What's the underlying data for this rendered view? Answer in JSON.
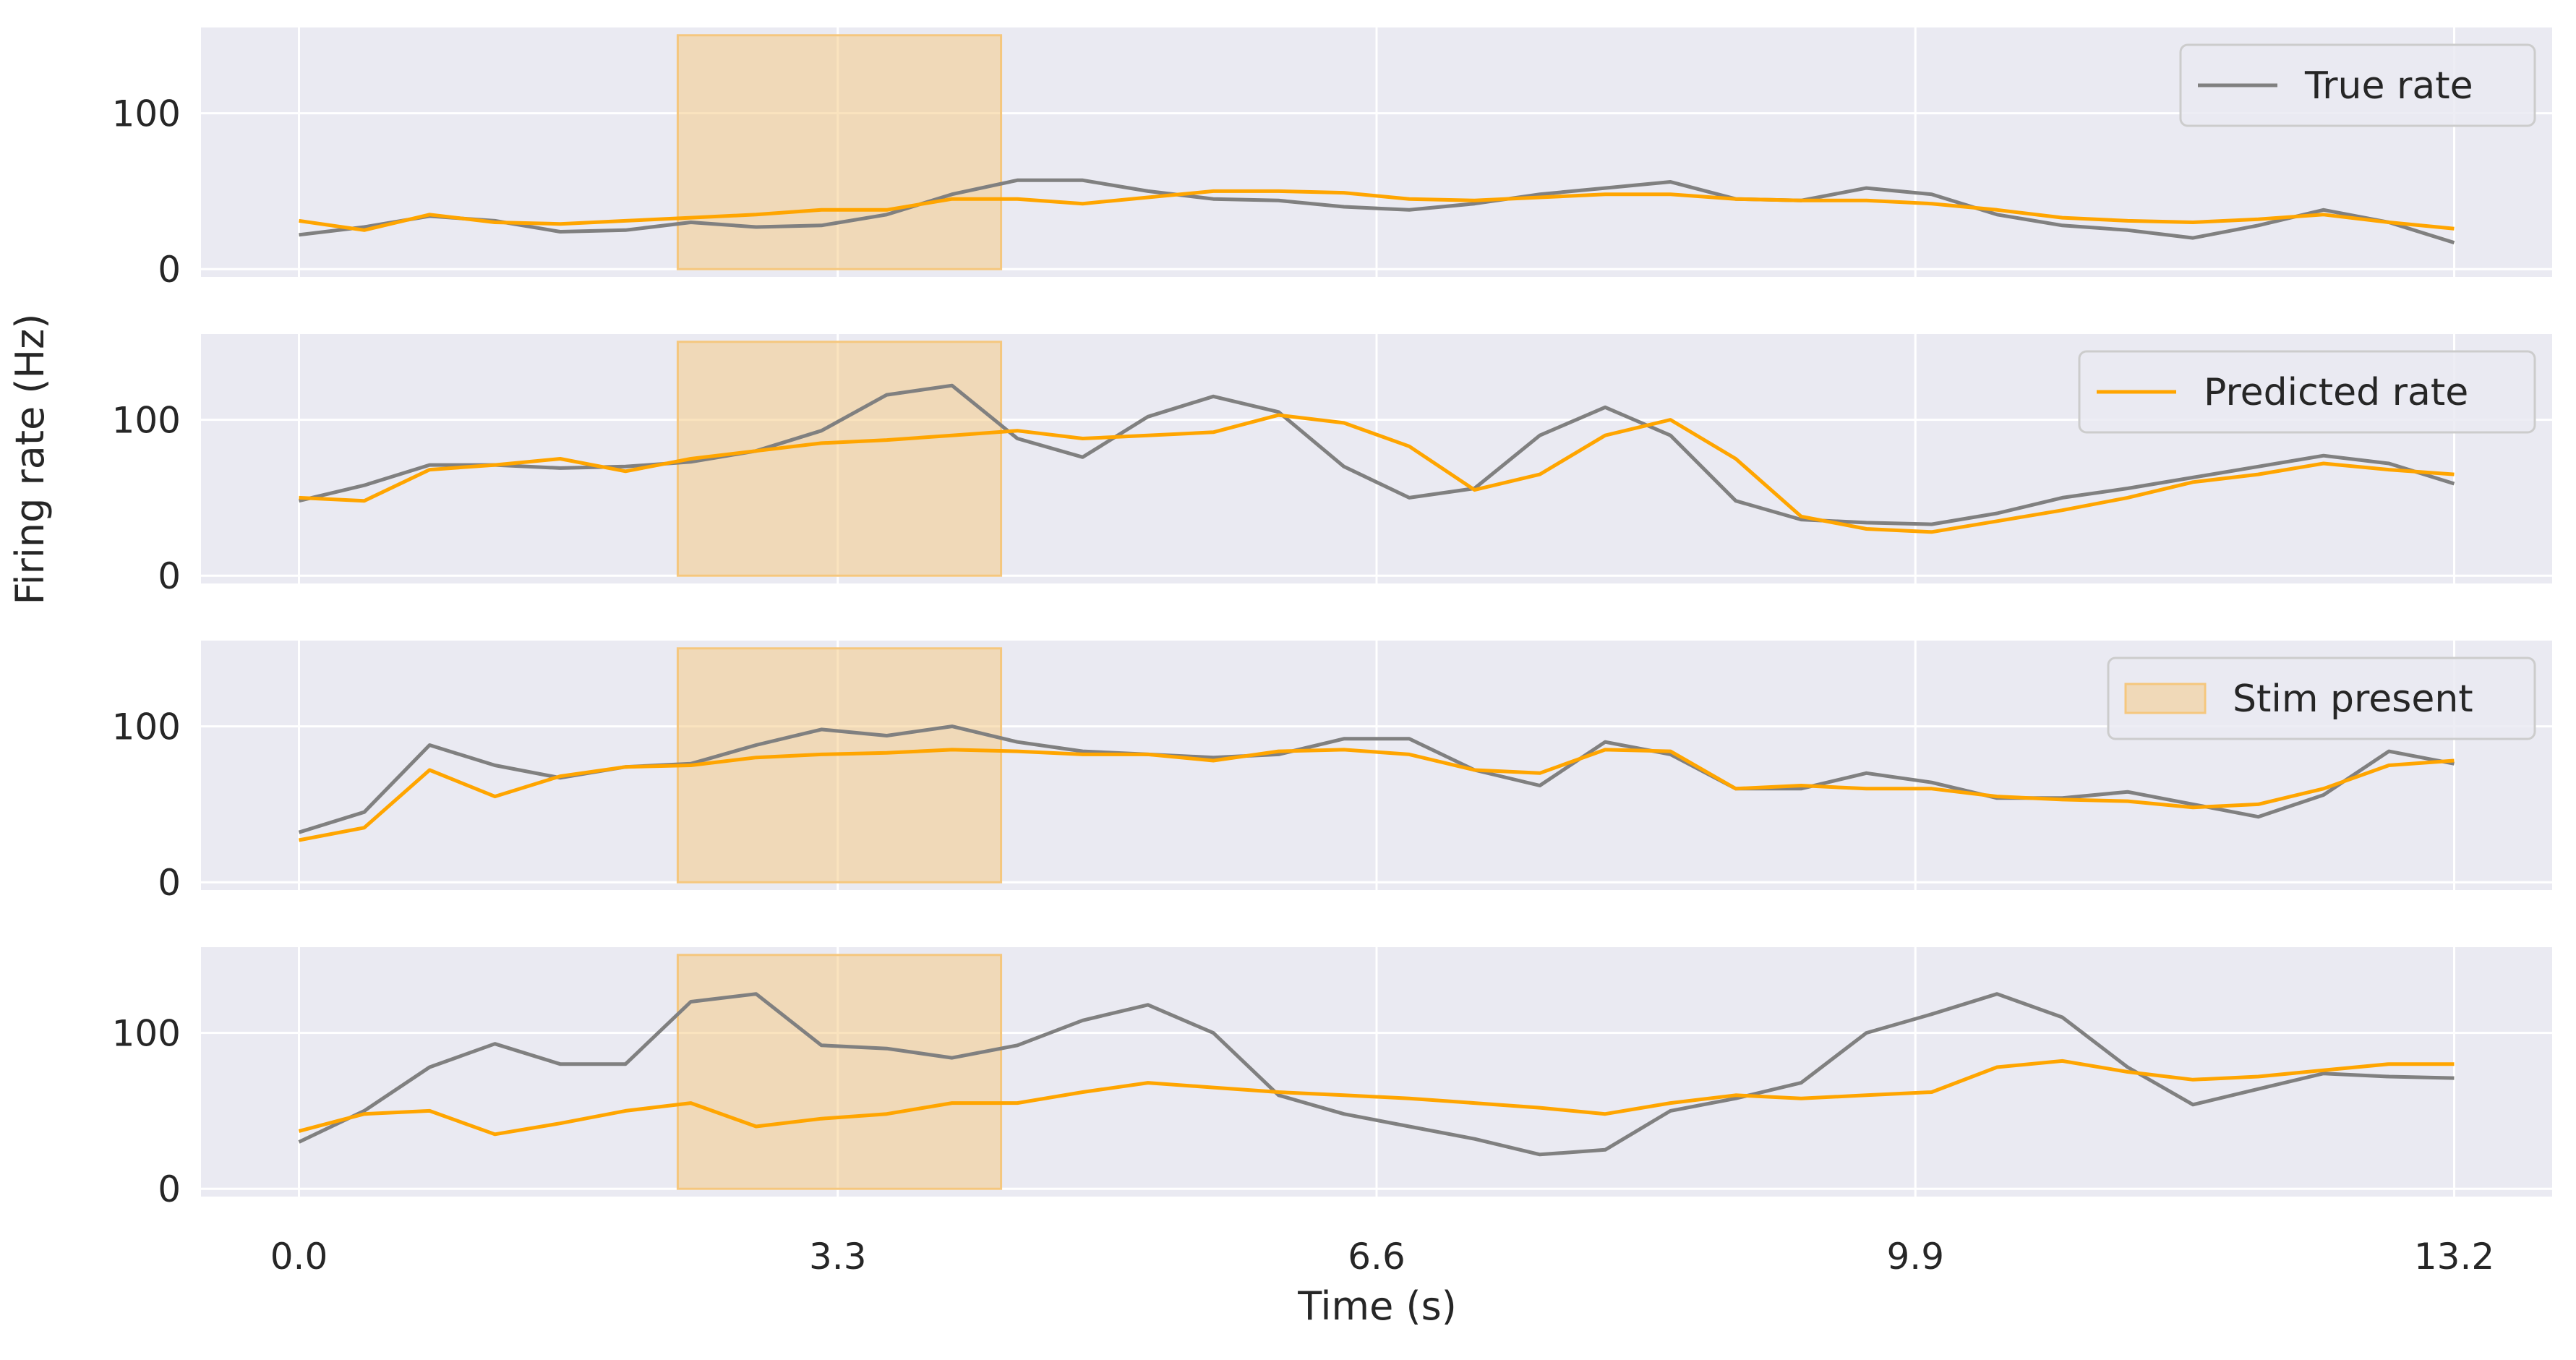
{
  "chart_data": {
    "type": "line",
    "xlabel": "Time (s)",
    "ylabel": "Firing rate (Hz)",
    "xlim": [
      -0.6,
      13.8
    ],
    "ylim": [
      -5,
      155
    ],
    "x_ticks": [
      "0.0",
      "3.3",
      "6.6",
      "9.9",
      "13.2"
    ],
    "x_tick_values": [
      0.0,
      3.3,
      6.6,
      9.9,
      13.2
    ],
    "y_ticks": [
      "0",
      "100"
    ],
    "y_tick_values": [
      0,
      100
    ],
    "grid": true,
    "stim_interval": [
      2.32,
      4.3
    ],
    "colors": {
      "true_rate": "#808080",
      "predicted_rate": "#FFA500",
      "stim_fill": "#F5C77E",
      "panel_bg": "#EAEAF2",
      "grid": "#FFFFFF"
    },
    "legend": [
      {
        "panel": 0,
        "label": "True rate",
        "kind": "line",
        "color": "#808080",
        "placement": "upper right"
      },
      {
        "panel": 1,
        "label": "Predicted rate",
        "kind": "line",
        "color": "#FFA500",
        "placement": "upper right"
      },
      {
        "panel": 2,
        "label": "Stim present",
        "kind": "patch",
        "color": "#F5C77E",
        "placement": "upper right"
      }
    ],
    "x": [
      0.0,
      0.4,
      0.8,
      1.2,
      1.6,
      2.0,
      2.4,
      2.8,
      3.2,
      3.6,
      4.0,
      4.4,
      4.8,
      5.2,
      5.6,
      6.0,
      6.4,
      6.8,
      7.2,
      7.6,
      8.0,
      8.4,
      8.8,
      9.2,
      9.6,
      10.0,
      10.4,
      10.8,
      11.2,
      11.6,
      12.0,
      12.4,
      12.8,
      13.2
    ],
    "panels": [
      {
        "true_rate": [
          22,
          27,
          34,
          31,
          24,
          25,
          30,
          27,
          28,
          35,
          48,
          57,
          57,
          50,
          45,
          44,
          40,
          38,
          42,
          48,
          52,
          56,
          45,
          44,
          52,
          48,
          35,
          28,
          25,
          20,
          28,
          38,
          30,
          17
        ],
        "predicted_rate": [
          31,
          25,
          35,
          30,
          29,
          31,
          33,
          35,
          38,
          38,
          45,
          45,
          42,
          46,
          50,
          50,
          49,
          45,
          44,
          46,
          48,
          48,
          45,
          44,
          44,
          42,
          38,
          33,
          31,
          30,
          32,
          35,
          30,
          26
        ]
      },
      {
        "true_rate": [
          48,
          58,
          71,
          71,
          69,
          70,
          73,
          80,
          93,
          116,
          122,
          88,
          76,
          102,
          115,
          105,
          70,
          50,
          56,
          90,
          108,
          90,
          48,
          36,
          34,
          33,
          40,
          50,
          56,
          63,
          70,
          77,
          72,
          59
        ],
        "predicted_rate": [
          50,
          48,
          68,
          71,
          75,
          67,
          75,
          80,
          85,
          87,
          90,
          93,
          88,
          90,
          92,
          103,
          98,
          83,
          55,
          65,
          90,
          100,
          75,
          38,
          30,
          28,
          35,
          42,
          50,
          60,
          65,
          72,
          68,
          65
        ]
      },
      {
        "true_rate": [
          32,
          45,
          88,
          75,
          67,
          74,
          76,
          88,
          98,
          94,
          100,
          90,
          84,
          82,
          80,
          82,
          92,
          92,
          72,
          62,
          90,
          82,
          60,
          60,
          70,
          64,
          54,
          54,
          58,
          50,
          42,
          56,
          84,
          76
        ],
        "predicted_rate": [
          27,
          35,
          72,
          55,
          68,
          74,
          75,
          80,
          82,
          83,
          85,
          84,
          82,
          82,
          78,
          84,
          85,
          82,
          72,
          70,
          85,
          84,
          60,
          62,
          60,
          60,
          55,
          53,
          52,
          48,
          50,
          60,
          75,
          78
        ]
      },
      {
        "true_rate": [
          30,
          50,
          78,
          93,
          80,
          80,
          120,
          125,
          92,
          90,
          84,
          92,
          108,
          118,
          100,
          60,
          48,
          40,
          32,
          22,
          25,
          50,
          58,
          68,
          100,
          112,
          125,
          110,
          78,
          54,
          64,
          74,
          72,
          71
        ],
        "predicted_rate": [
          37,
          48,
          50,
          35,
          42,
          50,
          55,
          40,
          45,
          48,
          55,
          55,
          62,
          68,
          65,
          62,
          60,
          58,
          55,
          52,
          48,
          55,
          60,
          58,
          60,
          62,
          78,
          82,
          75,
          70,
          72,
          76,
          80,
          80
        ]
      }
    ]
  }
}
